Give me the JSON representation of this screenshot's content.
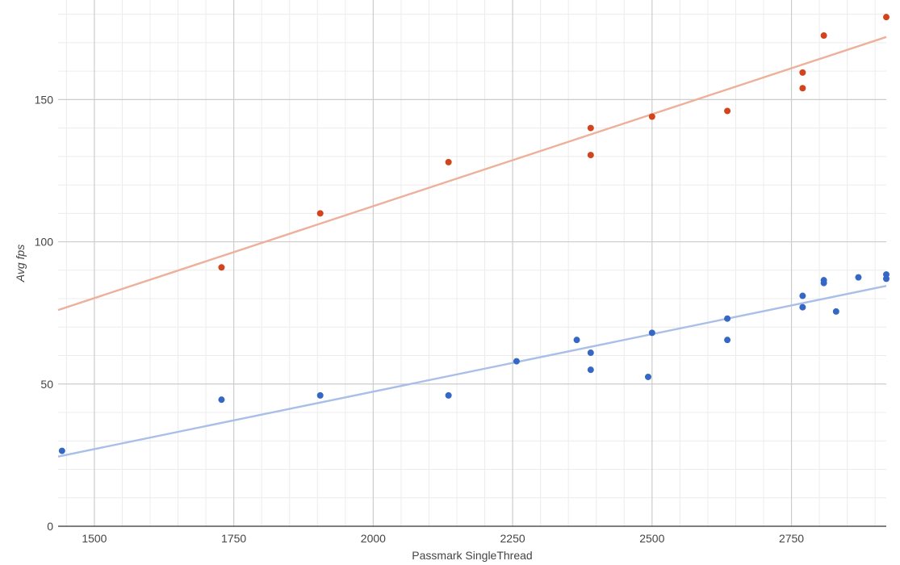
{
  "chart_data": {
    "type": "scatter",
    "title": "",
    "xlabel": "Passmark SingleThread",
    "ylabel": "Avg fps",
    "xlim": [
      1435,
      2920
    ],
    "ylim": [
      0,
      185
    ],
    "x_ticks": [
      1500,
      1750,
      2000,
      2250,
      2500,
      2750
    ],
    "y_ticks": [
      0,
      50,
      100,
      150
    ],
    "grid": true,
    "legend": "none",
    "series": [
      {
        "color": "#d2441c",
        "trendline_color": "#edb09a",
        "trendline": [
          [
            1435,
            76
          ],
          [
            2920,
            172
          ]
        ],
        "points": [
          [
            1728,
            91
          ],
          [
            1905,
            110
          ],
          [
            2135,
            128
          ],
          [
            2390,
            140
          ],
          [
            2390,
            130.5
          ],
          [
            2500,
            144
          ],
          [
            2635,
            146
          ],
          [
            2770,
            159.5
          ],
          [
            2770,
            154
          ],
          [
            2808,
            172.5
          ],
          [
            2920,
            179
          ]
        ]
      },
      {
        "color": "#3567c4",
        "trendline_color": "#a9bfe8",
        "trendline": [
          [
            1435,
            24.5
          ],
          [
            2920,
            84.5
          ]
        ],
        "points": [
          [
            1442,
            26.5
          ],
          [
            1728,
            44.5
          ],
          [
            1905,
            46
          ],
          [
            2135,
            46
          ],
          [
            2257,
            58
          ],
          [
            2365,
            65.5
          ],
          [
            2390,
            61
          ],
          [
            2390,
            55
          ],
          [
            2493,
            52.5
          ],
          [
            2500,
            68
          ],
          [
            2635,
            73
          ],
          [
            2635,
            65.5
          ],
          [
            2770,
            81
          ],
          [
            2770,
            77
          ],
          [
            2808,
            86.5
          ],
          [
            2808,
            85.5
          ],
          [
            2830,
            75.5
          ],
          [
            2870,
            87.5
          ],
          [
            2920,
            88.5
          ],
          [
            2920,
            87
          ]
        ]
      }
    ]
  }
}
